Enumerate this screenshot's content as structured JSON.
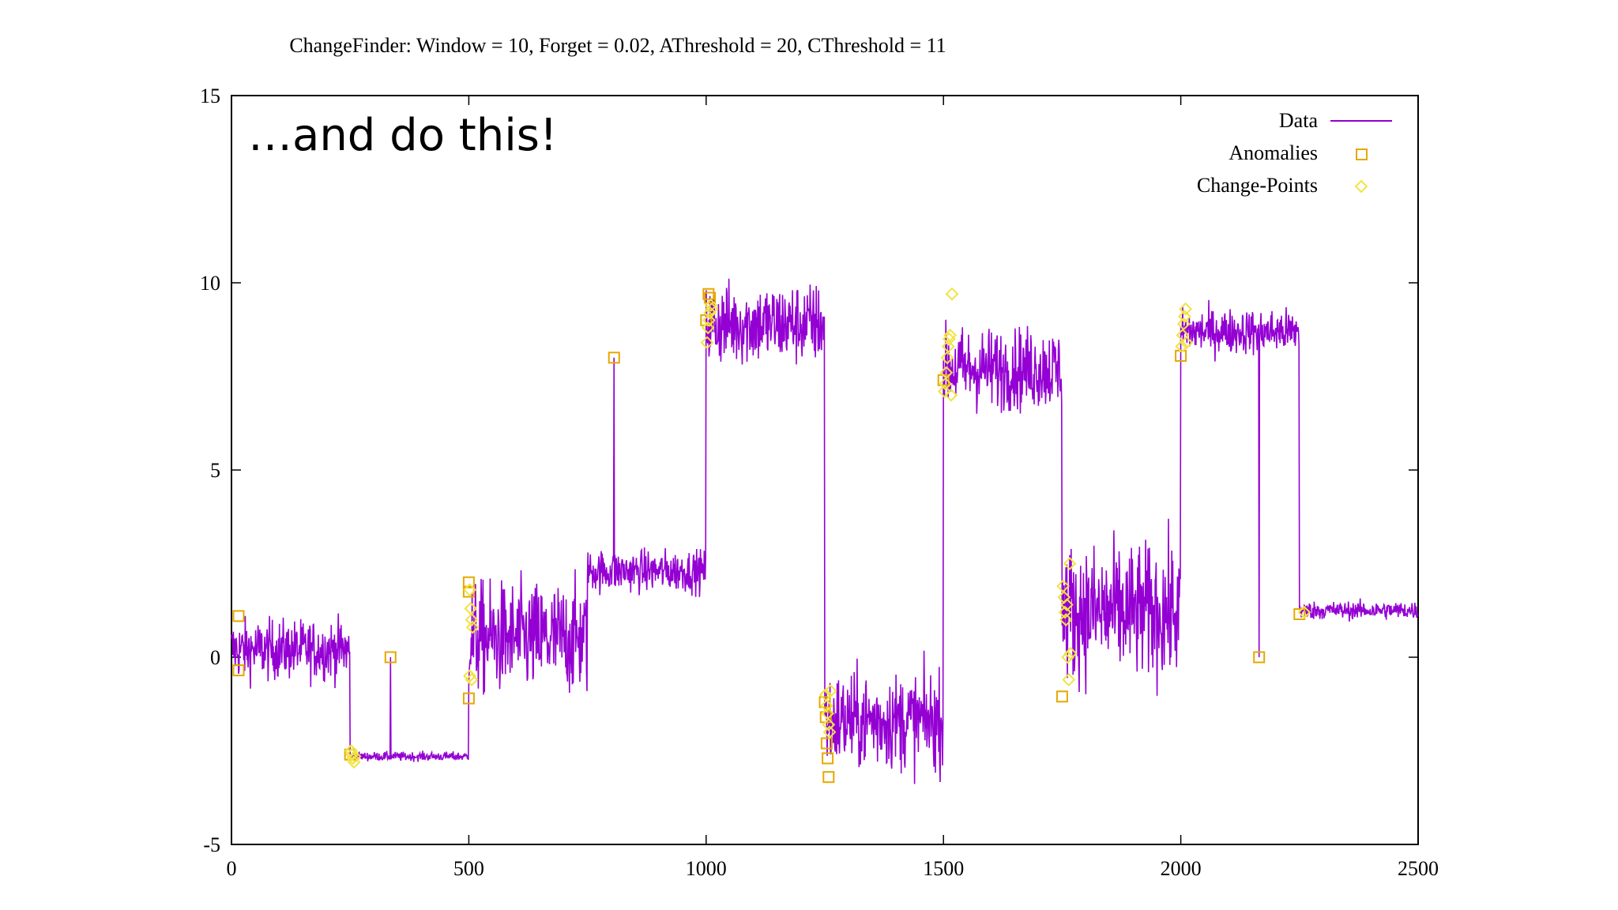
{
  "chart_data": {
    "type": "line",
    "title": "ChangeFinder: Window = 10, Forget = 0.02, AThreshold = 20, CThreshold = 11",
    "annotation": "…and do this!",
    "xlabel": "",
    "ylabel": "",
    "xlim": [
      0,
      2500
    ],
    "ylim": [
      -5,
      15
    ],
    "xticks": [
      0,
      500,
      1000,
      1500,
      2000,
      2500
    ],
    "yticks": [
      -5,
      0,
      5,
      10,
      15
    ],
    "grid": false,
    "legend_position": "top-right",
    "colors": {
      "data": "#9400d3",
      "anomalies": "#e6a800",
      "change_points": "#f0e442",
      "axis": "#000000"
    },
    "series": [
      {
        "name": "Data",
        "style": "line",
        "segments": [
          {
            "x_start": 0,
            "x_end": 250,
            "mean": 0.2,
            "noise": 0.4
          },
          {
            "x_start": 250,
            "x_end": 500,
            "mean": -2.65,
            "noise": 0.06
          },
          {
            "x_start": 500,
            "x_end": 750,
            "mean": 0.5,
            "noise": 0.75
          },
          {
            "x_start": 750,
            "x_end": 1000,
            "mean": 2.3,
            "noise": 0.28
          },
          {
            "x_start": 1000,
            "x_end": 1250,
            "mean": 8.9,
            "noise": 0.55
          },
          {
            "x_start": 1250,
            "x_end": 1500,
            "mean": -1.7,
            "noise": 0.65
          },
          {
            "x_start": 1500,
            "x_end": 1750,
            "mean": 7.7,
            "noise": 0.55
          },
          {
            "x_start": 1750,
            "x_end": 2000,
            "mean": 1.2,
            "noise": 0.9
          },
          {
            "x_start": 2000,
            "x_end": 2250,
            "mean": 8.7,
            "noise": 0.3
          },
          {
            "x_start": 2250,
            "x_end": 2500,
            "mean": 1.25,
            "noise": 0.12
          }
        ],
        "spikes": [
          {
            "x": 335,
            "y": 0.0
          },
          {
            "x": 806,
            "y": 8.0
          },
          {
            "x": 2165,
            "y": 0.0
          }
        ]
      },
      {
        "name": "Anomalies",
        "style": "square",
        "points": [
          {
            "x": 15,
            "y": 1.1
          },
          {
            "x": 15,
            "y": -0.35
          },
          {
            "x": 250,
            "y": -2.6
          },
          {
            "x": 335,
            "y": 0.0
          },
          {
            "x": 500,
            "y": 2.0
          },
          {
            "x": 500,
            "y": 1.75
          },
          {
            "x": 500,
            "y": -1.1
          },
          {
            "x": 806,
            "y": 8.0
          },
          {
            "x": 1000,
            "y": 9.0
          },
          {
            "x": 1005,
            "y": 9.7
          },
          {
            "x": 1008,
            "y": 9.6
          },
          {
            "x": 1250,
            "y": -1.2
          },
          {
            "x": 1252,
            "y": -1.6
          },
          {
            "x": 1254,
            "y": -2.3
          },
          {
            "x": 1256,
            "y": -2.7
          },
          {
            "x": 1258,
            "y": -3.2
          },
          {
            "x": 1500,
            "y": 7.4
          },
          {
            "x": 1750,
            "y": -1.05
          },
          {
            "x": 2000,
            "y": 8.05
          },
          {
            "x": 2165,
            "y": 0.0
          },
          {
            "x": 2250,
            "y": 1.15
          }
        ]
      },
      {
        "name": "Change-Points",
        "style": "diamond",
        "points": [
          {
            "x": 252,
            "y": -2.5
          },
          {
            "x": 254,
            "y": -2.6
          },
          {
            "x": 256,
            "y": -2.7
          },
          {
            "x": 258,
            "y": -2.8
          },
          {
            "x": 260,
            "y": -2.65
          },
          {
            "x": 502,
            "y": 1.8
          },
          {
            "x": 504,
            "y": 1.3
          },
          {
            "x": 506,
            "y": 1.0
          },
          {
            "x": 508,
            "y": 0.8
          },
          {
            "x": 502,
            "y": -0.5
          },
          {
            "x": 506,
            "y": -0.6
          },
          {
            "x": 1002,
            "y": 8.4
          },
          {
            "x": 1004,
            "y": 8.8
          },
          {
            "x": 1006,
            "y": 9.0
          },
          {
            "x": 1008,
            "y": 9.2
          },
          {
            "x": 1010,
            "y": 9.4
          },
          {
            "x": 1012,
            "y": 9.3
          },
          {
            "x": 1252,
            "y": -1.0
          },
          {
            "x": 1254,
            "y": -1.3
          },
          {
            "x": 1256,
            "y": -1.5
          },
          {
            "x": 1258,
            "y": -1.8
          },
          {
            "x": 1260,
            "y": -2.0
          },
          {
            "x": 1262,
            "y": -0.9
          },
          {
            "x": 1502,
            "y": 7.1
          },
          {
            "x": 1504,
            "y": 7.3
          },
          {
            "x": 1506,
            "y": 7.6
          },
          {
            "x": 1508,
            "y": 8.0
          },
          {
            "x": 1510,
            "y": 8.3
          },
          {
            "x": 1512,
            "y": 8.5
          },
          {
            "x": 1514,
            "y": 8.6
          },
          {
            "x": 1516,
            "y": 7.0
          },
          {
            "x": 1518,
            "y": 9.7
          },
          {
            "x": 1752,
            "y": 1.9
          },
          {
            "x": 1754,
            "y": 1.6
          },
          {
            "x": 1756,
            "y": 1.2
          },
          {
            "x": 1758,
            "y": 1.0
          },
          {
            "x": 1760,
            "y": 1.4
          },
          {
            "x": 1762,
            "y": 0.0
          },
          {
            "x": 1764,
            "y": -0.6
          },
          {
            "x": 1766,
            "y": 2.5
          },
          {
            "x": 1768,
            "y": 0.1
          },
          {
            "x": 2002,
            "y": 8.3
          },
          {
            "x": 2004,
            "y": 8.6
          },
          {
            "x": 2006,
            "y": 8.9
          },
          {
            "x": 2008,
            "y": 9.1
          },
          {
            "x": 2010,
            "y": 9.3
          },
          {
            "x": 2012,
            "y": 8.4
          },
          {
            "x": 2260,
            "y": 1.2
          }
        ]
      }
    ]
  }
}
